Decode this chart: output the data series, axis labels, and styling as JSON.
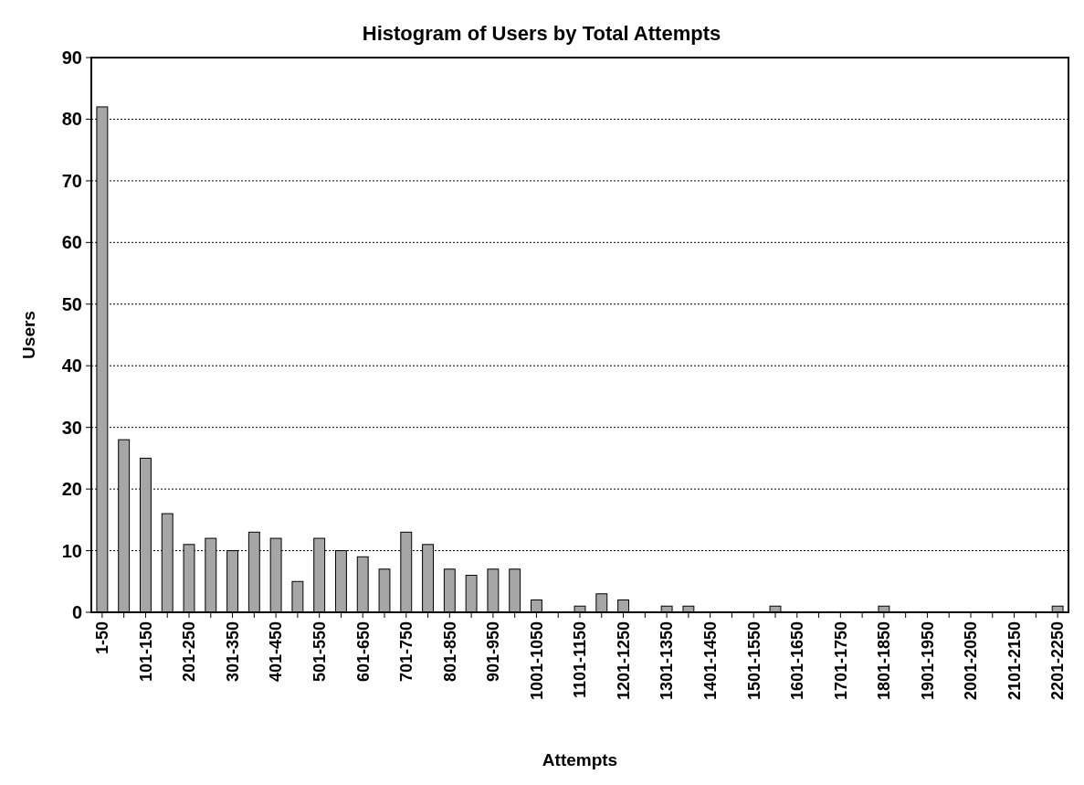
{
  "chart_data": {
    "type": "bar",
    "title": "Histogram of Users by Total Attempts",
    "xlabel": "Attempts",
    "ylabel": "Users",
    "categories": [
      "1-50",
      null,
      "101-150",
      null,
      "201-250",
      null,
      "301-350",
      null,
      "401-450",
      null,
      "501-550",
      null,
      "601-650",
      null,
      "701-750",
      null,
      "801-850",
      null,
      "901-950",
      null,
      "1001-1050",
      null,
      "1101-1150",
      null,
      "1201-1250",
      null,
      "1301-1350",
      null,
      "1401-1450",
      null,
      "1501-1550",
      null,
      "1601-1650",
      null,
      "1701-1750",
      null,
      "1801-1850",
      null,
      "1901-1950",
      null,
      "2001-2050",
      null,
      "2101-2150",
      null,
      "2201-2250"
    ],
    "values": [
      82,
      28,
      25,
      16,
      11,
      12,
      10,
      13,
      12,
      5,
      12,
      10,
      9,
      7,
      13,
      11,
      7,
      6,
      7,
      7,
      2,
      0,
      1,
      3,
      2,
      0,
      1,
      1,
      0,
      0,
      0,
      1,
      0,
      0,
      0,
      0,
      1,
      0,
      0,
      0,
      0,
      0,
      0,
      0,
      1
    ],
    "color": "#a6a6a6",
    "ylim": [
      0,
      90
    ],
    "yticks": [
      0,
      10,
      20,
      30,
      40,
      50,
      60,
      70,
      80,
      90
    ],
    "grid": "y"
  }
}
